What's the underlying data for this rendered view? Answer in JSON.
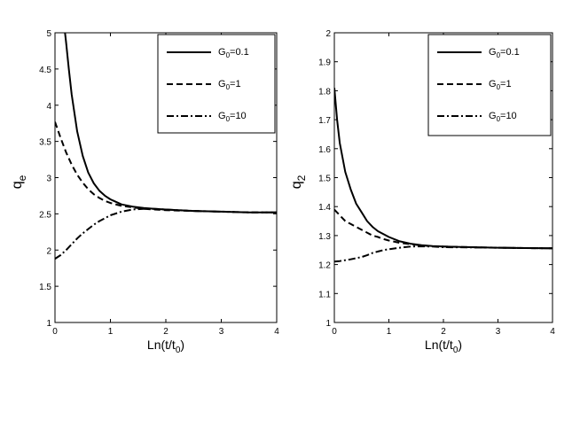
{
  "chart_data": [
    {
      "type": "line",
      "xlabel": "Ln(t/t",
      "xlabel_sub": "0",
      "xlabel_tail": ")",
      "ylabel": "q",
      "ylabel_sub": "e",
      "xlim": [
        0,
        4
      ],
      "ylim": [
        1,
        5
      ],
      "xticks": [
        "0",
        "1",
        "2",
        "3",
        "4"
      ],
      "yticks": [
        "1",
        "1.5",
        "2",
        "2.5",
        "3",
        "3.5",
        "4",
        "4.5",
        "5"
      ],
      "grid": false,
      "legend_position": "top-right",
      "series": [
        {
          "name": "G",
          "name_sub": "0",
          "name_tail": "=0.1",
          "dash": "solid",
          "x": [
            0.18,
            0.2,
            0.25,
            0.3,
            0.4,
            0.5,
            0.6,
            0.7,
            0.8,
            0.9,
            1.0,
            1.2,
            1.4,
            1.6,
            1.8,
            2.0,
            2.5,
            3.0,
            3.5,
            4.0
          ],
          "y": [
            5.0,
            4.87,
            4.5,
            4.15,
            3.64,
            3.3,
            3.07,
            2.92,
            2.82,
            2.75,
            2.7,
            2.63,
            2.6,
            2.58,
            2.57,
            2.56,
            2.54,
            2.53,
            2.52,
            2.52
          ]
        },
        {
          "name": "G",
          "name_sub": "0",
          "name_tail": "=1",
          "dash": "dashed",
          "x": [
            0,
            0.1,
            0.2,
            0.3,
            0.4,
            0.5,
            0.6,
            0.7,
            0.8,
            0.9,
            1.0,
            1.2,
            1.4,
            1.6,
            1.8,
            2.0,
            2.5,
            3.0,
            3.5,
            4.0
          ],
          "y": [
            3.77,
            3.55,
            3.35,
            3.18,
            3.04,
            2.93,
            2.84,
            2.77,
            2.72,
            2.68,
            2.65,
            2.61,
            2.59,
            2.57,
            2.56,
            2.55,
            2.54,
            2.53,
            2.52,
            2.52
          ]
        },
        {
          "name": "G",
          "name_sub": "0",
          "name_tail": "=10",
          "dash": "dashdot",
          "x": [
            0,
            0.1,
            0.2,
            0.3,
            0.4,
            0.5,
            0.6,
            0.7,
            0.8,
            0.9,
            1.0,
            1.2,
            1.4,
            1.6,
            1.8,
            2.0,
            2.5,
            3.0,
            3.5,
            4.0
          ],
          "y": [
            1.88,
            1.93,
            2.0,
            2.08,
            2.16,
            2.23,
            2.29,
            2.35,
            2.4,
            2.44,
            2.48,
            2.53,
            2.56,
            2.57,
            2.57,
            2.56,
            2.54,
            2.53,
            2.52,
            2.52
          ]
        }
      ]
    },
    {
      "type": "line",
      "xlabel": "Ln(t/t",
      "xlabel_sub": "0",
      "xlabel_tail": ")",
      "ylabel": "q",
      "ylabel_sub": "2",
      "xlim": [
        0,
        4
      ],
      "ylim": [
        1,
        2
      ],
      "xticks": [
        "0",
        "1",
        "2",
        "3",
        "4"
      ],
      "yticks": [
        "1",
        "1.1",
        "1.2",
        "1.3",
        "1.4",
        "1.5",
        "1.6",
        "1.7",
        "1.8",
        "1.9",
        "2"
      ],
      "grid": false,
      "legend_position": "top-right",
      "series": [
        {
          "name": "G",
          "name_sub": "0",
          "name_tail": "=0.1",
          "dash": "solid",
          "x": [
            0,
            0.05,
            0.1,
            0.2,
            0.3,
            0.4,
            0.5,
            0.6,
            0.7,
            0.8,
            0.9,
            1.0,
            1.2,
            1.4,
            1.6,
            1.8,
            2.0,
            2.5,
            3.0,
            3.5,
            4.0
          ],
          "y": [
            1.81,
            1.7,
            1.62,
            1.52,
            1.46,
            1.41,
            1.38,
            1.35,
            1.33,
            1.315,
            1.305,
            1.295,
            1.28,
            1.272,
            1.267,
            1.264,
            1.262,
            1.26,
            1.258,
            1.257,
            1.256
          ]
        },
        {
          "name": "G",
          "name_sub": "0",
          "name_tail": "=1",
          "dash": "dashed",
          "x": [
            0,
            0.1,
            0.2,
            0.3,
            0.4,
            0.5,
            0.6,
            0.7,
            0.8,
            0.9,
            1.0,
            1.2,
            1.4,
            1.6,
            1.8,
            2.0,
            2.5,
            3.0,
            3.5,
            4.0
          ],
          "y": [
            1.39,
            1.37,
            1.35,
            1.34,
            1.33,
            1.32,
            1.31,
            1.3,
            1.295,
            1.288,
            1.283,
            1.275,
            1.27,
            1.266,
            1.263,
            1.262,
            1.26,
            1.258,
            1.257,
            1.256
          ]
        },
        {
          "name": "G",
          "name_sub": "0",
          "name_tail": "=10",
          "dash": "dashdot",
          "x": [
            0,
            0.1,
            0.2,
            0.3,
            0.4,
            0.5,
            0.6,
            0.7,
            0.8,
            0.9,
            1.0,
            1.2,
            1.4,
            1.6,
            1.8,
            2.0,
            2.5,
            3.0,
            3.5,
            4.0
          ],
          "y": [
            1.21,
            1.212,
            1.215,
            1.218,
            1.222,
            1.226,
            1.232,
            1.24,
            1.245,
            1.25,
            1.253,
            1.258,
            1.262,
            1.263,
            1.262,
            1.26,
            1.259,
            1.258,
            1.257,
            1.256
          ]
        }
      ]
    }
  ]
}
